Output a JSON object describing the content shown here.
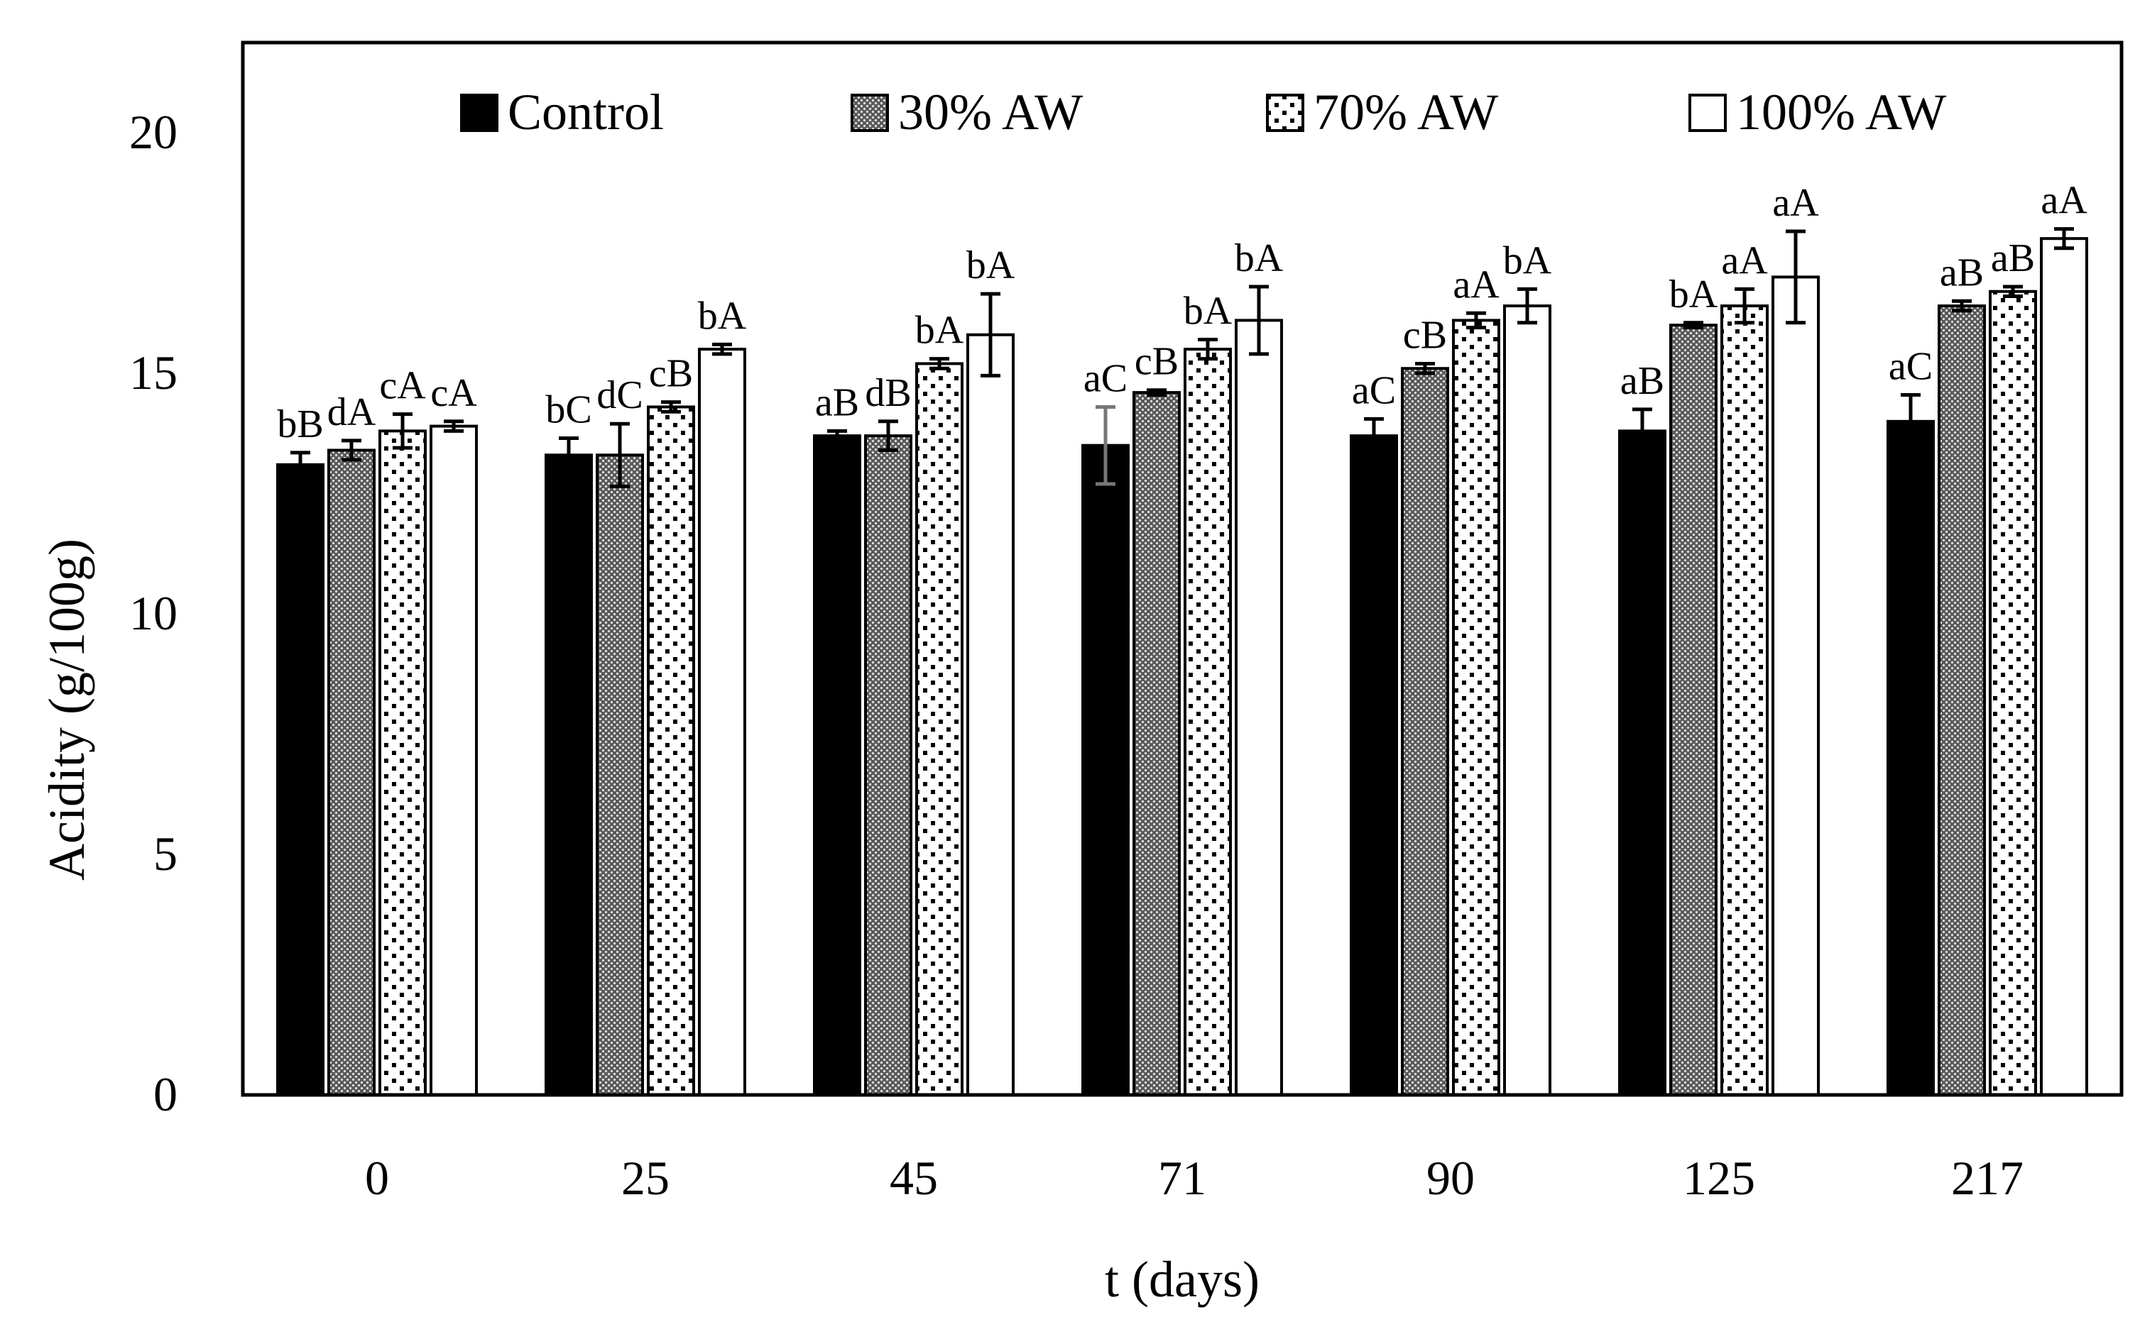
{
  "chart_data": {
    "type": "bar",
    "xlabel": "t (days)",
    "ylabel": "Acidity (g/100g)",
    "ylim": [
      0,
      21
    ],
    "yticks": [
      0,
      5,
      10,
      15,
      20
    ],
    "categories": [
      "0",
      "25",
      "45",
      "71",
      "90",
      "125",
      "217"
    ],
    "legend_position": "top",
    "grid": false,
    "series": [
      {
        "name": "Control",
        "pattern": "solid-black",
        "values": [
          13.1,
          13.3,
          13.7,
          13.5,
          13.7,
          13.8,
          14.0
        ],
        "errors": [
          0.25,
          0.35,
          0.1,
          0.8,
          0.35,
          0.45,
          0.55
        ],
        "letters": [
          "bB",
          "bC",
          "aB",
          "aC",
          "aC",
          "aB",
          "aC"
        ]
      },
      {
        "name": "30% AW",
        "pattern": "fine-gray",
        "values": [
          13.4,
          13.3,
          13.7,
          14.6,
          15.1,
          16.0,
          16.4
        ],
        "errors": [
          0.2,
          0.65,
          0.3,
          0.05,
          0.1,
          0.05,
          0.1
        ],
        "letters": [
          "dA",
          "dC",
          "dB",
          "cB",
          "cB",
          "bA",
          "aB"
        ]
      },
      {
        "name": "70% AW",
        "pattern": "dots",
        "values": [
          13.8,
          14.3,
          15.2,
          15.5,
          16.1,
          16.4,
          16.7
        ],
        "errors": [
          0.35,
          0.1,
          0.1,
          0.2,
          0.15,
          0.35,
          0.1
        ],
        "letters": [
          "cA",
          "cB",
          "bA",
          "bA",
          "aA",
          "aA",
          "aB"
        ]
      },
      {
        "name": "100% AW",
        "pattern": "white",
        "values": [
          13.9,
          15.5,
          15.8,
          16.1,
          16.4,
          17.0,
          17.8
        ],
        "errors": [
          0.1,
          0.1,
          0.85,
          0.7,
          0.35,
          0.95,
          0.2
        ],
        "letters": [
          "cA",
          "bA",
          "bA",
          "bA",
          "bA",
          "aA",
          "aA"
        ]
      }
    ]
  }
}
